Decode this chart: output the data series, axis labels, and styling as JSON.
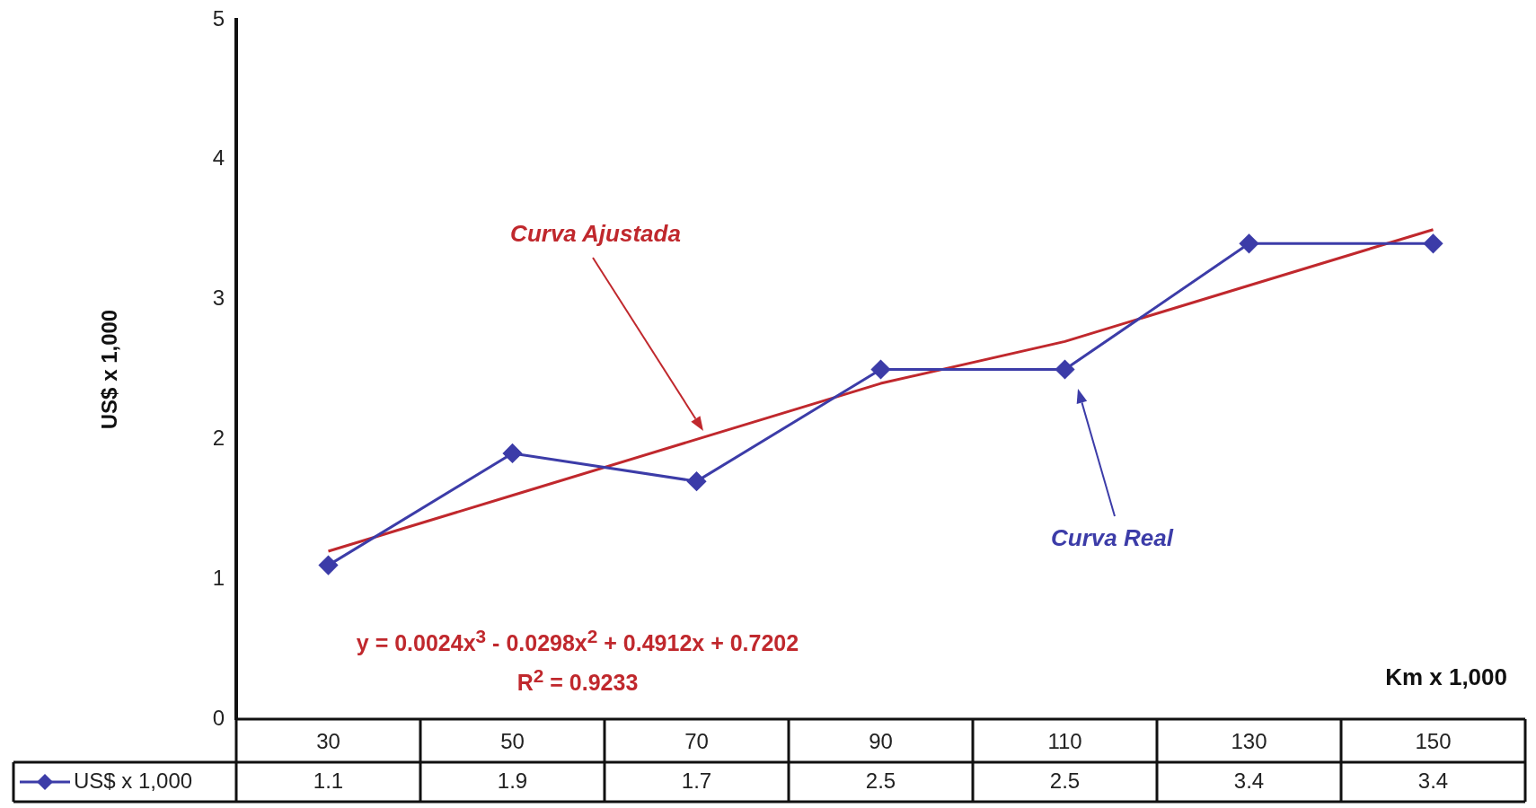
{
  "chart_data": {
    "type": "line",
    "xlabel": "Km x 1,000",
    "ylabel": "US$ x 1,000",
    "categories": [
      "30",
      "50",
      "70",
      "90",
      "110",
      "130",
      "150"
    ],
    "series": [
      {
        "name": "US$ x 1,000",
        "color": "#3c3ca8",
        "values": [
          1.1,
          1.9,
          1.7,
          2.5,
          2.5,
          3.4,
          3.4
        ],
        "value_labels": [
          "1.1",
          "1.9",
          "1.7",
          "2.5",
          "2.5",
          "3.4",
          "3.4"
        ],
        "marker": "diamond"
      },
      {
        "type": "line",
        "color": "#c0282d",
        "values": [
          1.2,
          1.6,
          2.0,
          2.4,
          2.7,
          3.1,
          3.5
        ],
        "marker": "none"
      }
    ],
    "ylim": [
      0,
      5
    ],
    "yticks": [
      0,
      1,
      2,
      3,
      4,
      5
    ],
    "grid": false,
    "legend": "bottom left",
    "annotations": [
      "Curva Ajustada",
      "Curva Real",
      "y = 0.0024x$^{3}$ - 0.0298x$^{2}$ + 0.4912x + 0.7202",
      "R$^{2}$ = 0.9233"
    ]
  }
}
